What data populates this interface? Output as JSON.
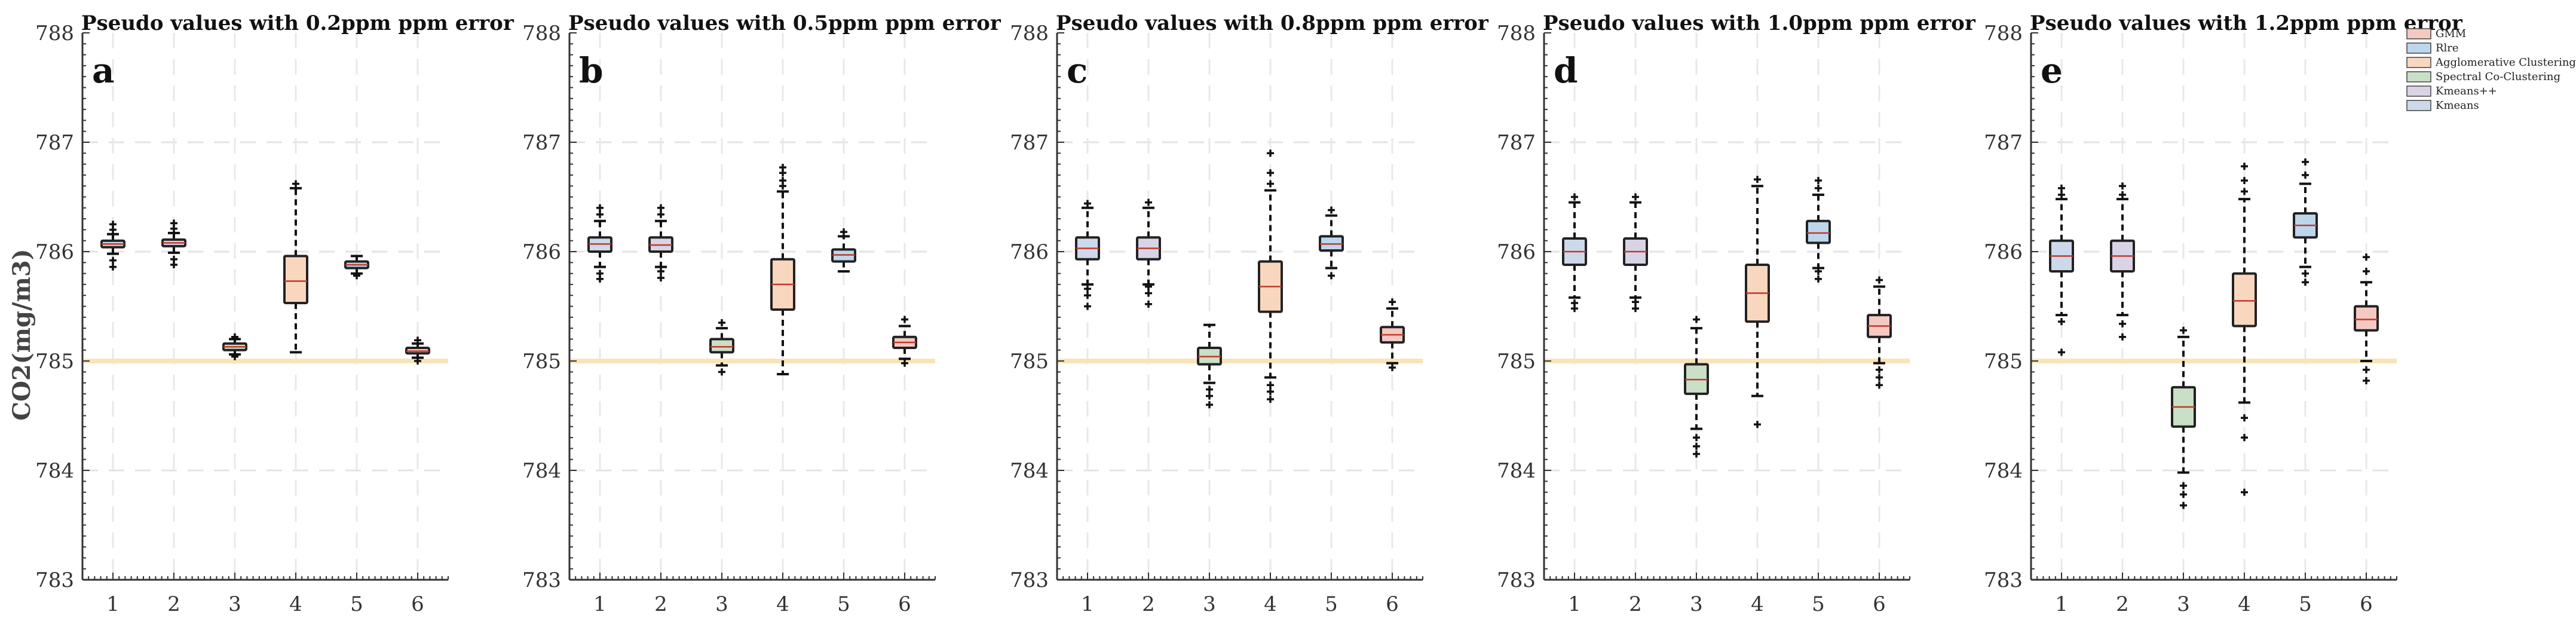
{
  "figure": {
    "ylabel": "CO2(mg/m3)",
    "legend": [
      {
        "label": "GMM",
        "color": "#f4c9c2"
      },
      {
        "label": "Rlre",
        "color": "#bcd6ec"
      },
      {
        "label": "Agglomerative Clustering",
        "color": "#f9d7bf"
      },
      {
        "label": "Spectral Co-Clustering",
        "color": "#c9dfc6"
      },
      {
        "label": "Kmeans++",
        "color": "#d9d3e6"
      },
      {
        "label": "Kmeans",
        "color": "#cdd9ea"
      }
    ]
  },
  "chart_data": [
    {
      "type": "box",
      "letter": "a",
      "title": "Pseudo values with 0.2ppm ppm error",
      "categories": [
        "1",
        "2",
        "3",
        "4",
        "5",
        "6"
      ],
      "ylim": [
        783,
        788
      ],
      "yticks": [
        "788",
        "787",
        "786",
        "785",
        "784",
        "783"
      ],
      "reference_line": 785,
      "boxes": [
        {
          "q1": 786.04,
          "median": 786.07,
          "q3": 786.1,
          "whisker_low": 785.98,
          "whisker_high": 786.16,
          "outliers": [
            785.86,
            785.92,
            786.2,
            786.25
          ],
          "color": "#cdd9ea"
        },
        {
          "q1": 786.05,
          "median": 786.08,
          "q3": 786.11,
          "whisker_low": 785.99,
          "whisker_high": 786.17,
          "outliers": [
            785.88,
            785.93,
            786.21,
            786.26
          ],
          "color": "#d9d3e6"
        },
        {
          "q1": 785.1,
          "median": 785.13,
          "q3": 785.16,
          "whisker_low": 785.06,
          "whisker_high": 785.2,
          "outliers": [
            785.04,
            785.22
          ],
          "color": "#c9dfc6"
        },
        {
          "q1": 785.53,
          "median": 785.73,
          "q3": 785.96,
          "whisker_low": 785.08,
          "whisker_high": 786.58,
          "outliers": [
            786.62
          ],
          "color": "#f9d7bf"
        },
        {
          "q1": 785.85,
          "median": 785.88,
          "q3": 785.91,
          "whisker_low": 785.8,
          "whisker_high": 785.96,
          "outliers": [
            785.78
          ],
          "color": "#bcd6ec"
        },
        {
          "q1": 785.07,
          "median": 785.09,
          "q3": 785.12,
          "whisker_low": 785.03,
          "whisker_high": 785.16,
          "outliers": [
            785.0,
            785.19
          ],
          "color": "#f4c9c2"
        }
      ]
    },
    {
      "type": "box",
      "letter": "b",
      "title": "Pseudo values with 0.5ppm ppm error",
      "categories": [
        "1",
        "2",
        "3",
        "4",
        "5",
        "6"
      ],
      "ylim": [
        783,
        788
      ],
      "yticks": [
        "788",
        "787",
        "786",
        "785",
        "784",
        "783"
      ],
      "reference_line": 785,
      "boxes": [
        {
          "q1": 786.0,
          "median": 786.07,
          "q3": 786.13,
          "whisker_low": 785.86,
          "whisker_high": 786.28,
          "outliers": [
            785.75,
            785.8,
            786.34,
            786.4
          ],
          "color": "#cdd9ea"
        },
        {
          "q1": 786.0,
          "median": 786.06,
          "q3": 786.13,
          "whisker_low": 785.86,
          "whisker_high": 786.28,
          "outliers": [
            785.76,
            785.82,
            786.34,
            786.4
          ],
          "color": "#d9d3e6"
        },
        {
          "q1": 785.08,
          "median": 785.13,
          "q3": 785.2,
          "whisker_low": 784.96,
          "whisker_high": 785.3,
          "outliers": [
            784.9,
            785.35
          ],
          "color": "#c9dfc6"
        },
        {
          "q1": 785.47,
          "median": 785.7,
          "q3": 785.93,
          "whisker_low": 784.88,
          "whisker_high": 786.55,
          "outliers": [
            786.6,
            786.65,
            786.72,
            786.77
          ],
          "color": "#f9d7bf"
        },
        {
          "q1": 785.91,
          "median": 785.97,
          "q3": 786.02,
          "whisker_low": 785.82,
          "whisker_high": 786.14,
          "outliers": [
            786.18
          ],
          "color": "#bcd6ec"
        },
        {
          "q1": 785.12,
          "median": 785.17,
          "q3": 785.22,
          "whisker_low": 785.02,
          "whisker_high": 785.32,
          "outliers": [
            784.98,
            785.38
          ],
          "color": "#f4c9c2"
        }
      ]
    },
    {
      "type": "box",
      "letter": "c",
      "title": "Pseudo values with 0.8ppm ppm error",
      "categories": [
        "1",
        "2",
        "3",
        "4",
        "5",
        "6"
      ],
      "ylim": [
        783,
        788
      ],
      "yticks": [
        "788",
        "787",
        "786",
        "785",
        "784",
        "783"
      ],
      "reference_line": 785,
      "boxes": [
        {
          "q1": 785.93,
          "median": 786.03,
          "q3": 786.13,
          "whisker_low": 785.7,
          "whisker_high": 786.4,
          "outliers": [
            785.5,
            785.6,
            785.66,
            786.44
          ],
          "color": "#cdd9ea"
        },
        {
          "q1": 785.93,
          "median": 786.03,
          "q3": 786.13,
          "whisker_low": 785.7,
          "whisker_high": 786.4,
          "outliers": [
            785.52,
            785.62,
            785.68,
            786.45
          ],
          "color": "#d9d3e6"
        },
        {
          "q1": 784.97,
          "median": 785.04,
          "q3": 785.12,
          "whisker_low": 784.8,
          "whisker_high": 785.33,
          "outliers": [
            784.6,
            784.68,
            784.74
          ],
          "color": "#c9dfc6"
        },
        {
          "q1": 785.45,
          "median": 785.68,
          "q3": 785.91,
          "whisker_low": 784.85,
          "whisker_high": 786.56,
          "outliers": [
            784.65,
            784.72,
            784.78,
            786.62,
            786.72,
            786.9
          ],
          "color": "#f9d7bf"
        },
        {
          "q1": 786.01,
          "median": 786.07,
          "q3": 786.14,
          "whisker_low": 785.85,
          "whisker_high": 786.33,
          "outliers": [
            785.78,
            786.38
          ],
          "color": "#bcd6ec"
        },
        {
          "q1": 785.17,
          "median": 785.24,
          "q3": 785.31,
          "whisker_low": 784.98,
          "whisker_high": 785.48,
          "outliers": [
            784.94,
            785.54
          ],
          "color": "#f4c9c2"
        }
      ]
    },
    {
      "type": "box",
      "letter": "d",
      "title": "Pseudo values with 1.0ppm ppm error",
      "categories": [
        "1",
        "2",
        "3",
        "4",
        "5",
        "6"
      ],
      "ylim": [
        783,
        788
      ],
      "yticks": [
        "788",
        "787",
        "786",
        "785",
        "784",
        "783"
      ],
      "reference_line": 785,
      "boxes": [
        {
          "q1": 785.88,
          "median": 786.0,
          "q3": 786.12,
          "whisker_low": 785.58,
          "whisker_high": 786.45,
          "outliers": [
            785.48,
            785.53,
            786.5
          ],
          "color": "#cdd9ea"
        },
        {
          "q1": 785.88,
          "median": 786.0,
          "q3": 786.12,
          "whisker_low": 785.58,
          "whisker_high": 786.45,
          "outliers": [
            785.48,
            785.54,
            786.5
          ],
          "color": "#d9d3e6"
        },
        {
          "q1": 784.7,
          "median": 784.83,
          "q3": 784.97,
          "whisker_low": 784.38,
          "whisker_high": 785.3,
          "outliers": [
            784.15,
            784.22,
            784.3,
            785.38
          ],
          "color": "#c9dfc6"
        },
        {
          "q1": 785.36,
          "median": 785.62,
          "q3": 785.88,
          "whisker_low": 784.68,
          "whisker_high": 786.6,
          "outliers": [
            784.42,
            786.66
          ],
          "color": "#f9d7bf"
        },
        {
          "q1": 786.08,
          "median": 786.17,
          "q3": 786.28,
          "whisker_low": 785.85,
          "whisker_high": 786.52,
          "outliers": [
            785.75,
            785.82,
            786.58,
            786.65
          ],
          "color": "#bcd6ec"
        },
        {
          "q1": 785.22,
          "median": 785.32,
          "q3": 785.42,
          "whisker_low": 784.98,
          "whisker_high": 785.68,
          "outliers": [
            784.78,
            784.85,
            784.92,
            785.74
          ],
          "color": "#f4c9c2"
        }
      ]
    },
    {
      "type": "box",
      "letter": "e",
      "title": "Pseudo values with 1.2ppm ppm error",
      "categories": [
        "1",
        "2",
        "3",
        "4",
        "5",
        "6"
      ],
      "ylim": [
        783,
        788
      ],
      "yticks": [
        "788",
        "787",
        "786",
        "785",
        "784",
        "783"
      ],
      "reference_line": 785,
      "boxes": [
        {
          "q1": 785.82,
          "median": 785.96,
          "q3": 786.1,
          "whisker_low": 785.42,
          "whisker_high": 786.48,
          "outliers": [
            785.08,
            785.36,
            786.52,
            786.58
          ],
          "color": "#cdd9ea"
        },
        {
          "q1": 785.82,
          "median": 785.96,
          "q3": 786.1,
          "whisker_low": 785.42,
          "whisker_high": 786.48,
          "outliers": [
            785.22,
            785.34,
            786.52,
            786.6
          ],
          "color": "#d9d3e6"
        },
        {
          "q1": 784.4,
          "median": 784.58,
          "q3": 784.76,
          "whisker_low": 783.98,
          "whisker_high": 785.22,
          "outliers": [
            783.68,
            783.78,
            783.86,
            785.28
          ],
          "color": "#c9dfc6"
        },
        {
          "q1": 785.32,
          "median": 785.55,
          "q3": 785.8,
          "whisker_low": 784.62,
          "whisker_high": 786.48,
          "outliers": [
            783.8,
            784.3,
            784.48,
            786.55,
            786.65,
            786.78
          ],
          "color": "#f9d7bf"
        },
        {
          "q1": 786.13,
          "median": 786.24,
          "q3": 786.35,
          "whisker_low": 785.86,
          "whisker_high": 786.62,
          "outliers": [
            785.72,
            785.8,
            786.7,
            786.82
          ],
          "color": "#bcd6ec"
        },
        {
          "q1": 785.28,
          "median": 785.38,
          "q3": 785.5,
          "whisker_low": 785.0,
          "whisker_high": 785.72,
          "outliers": [
            784.82,
            784.92,
            785.82,
            785.95
          ],
          "color": "#f4c9c2"
        }
      ]
    }
  ]
}
